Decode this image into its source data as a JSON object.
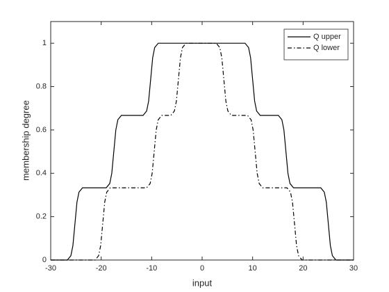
{
  "chart_data": {
    "type": "line",
    "xlabel": "input",
    "ylabel": "membership degree",
    "xlim": [
      -30,
      30
    ],
    "ylim": [
      0,
      1.1
    ],
    "xticks": [
      -30,
      -20,
      -10,
      0,
      10,
      20,
      30
    ],
    "yticks": [
      0,
      0.2,
      0.4,
      0.6,
      0.8,
      1
    ],
    "legend": "upper right",
    "series": [
      {
        "name": "Q upper",
        "color": "#000000",
        "style": "solid",
        "x": [
          -30,
          -26.7,
          -26,
          -25.6,
          -25.2,
          -24.8,
          -24.4,
          -23.7,
          -19,
          -18.3,
          -17.9,
          -17.5,
          -17.1,
          -16.7,
          -16,
          -11.7,
          -11,
          -10.6,
          -10.2,
          -9.8,
          -9.4,
          -8.7,
          8.5,
          9.2,
          9.6,
          10,
          10.4,
          10.8,
          11.5,
          15.1,
          15.8,
          16.2,
          16.6,
          17,
          17.4,
          18.1,
          23.5,
          24.2,
          24.6,
          25,
          25.4,
          25.8,
          26.5,
          30
        ],
        "values": [
          0,
          0,
          0.02,
          0.067,
          0.167,
          0.267,
          0.313,
          0.333,
          0.333,
          0.353,
          0.4,
          0.5,
          0.6,
          0.647,
          0.667,
          0.667,
          0.687,
          0.733,
          0.833,
          0.933,
          0.98,
          1,
          1,
          0.98,
          0.933,
          0.833,
          0.733,
          0.687,
          0.667,
          0.667,
          0.647,
          0.6,
          0.5,
          0.4,
          0.353,
          0.333,
          0.333,
          0.313,
          0.267,
          0.167,
          0.067,
          0.02,
          0,
          0
        ]
      },
      {
        "name": "Q lower",
        "color": "#000000",
        "style": "dashdot",
        "x": [
          -30,
          -21.2,
          -20.5,
          -20.1,
          -19.7,
          -19.3,
          -18.9,
          -18.2,
          -11,
          -10.3,
          -9.9,
          -9.5,
          -9.1,
          -8.7,
          -8,
          -6.2,
          -5.5,
          -5.1,
          -4.7,
          -4.3,
          -3.9,
          -3.2,
          2.8,
          3.5,
          3.9,
          4.3,
          4.7,
          5.1,
          5.8,
          9,
          9.7,
          10.1,
          10.5,
          10.9,
          11.3,
          12,
          16.8,
          17.5,
          17.9,
          18.3,
          18.7,
          19.1,
          19.8,
          30
        ],
        "values": [
          0,
          0,
          0.02,
          0.067,
          0.167,
          0.267,
          0.313,
          0.333,
          0.333,
          0.353,
          0.4,
          0.5,
          0.6,
          0.647,
          0.667,
          0.667,
          0.687,
          0.733,
          0.833,
          0.933,
          0.98,
          1,
          1,
          0.98,
          0.933,
          0.833,
          0.733,
          0.687,
          0.667,
          0.667,
          0.647,
          0.6,
          0.5,
          0.4,
          0.353,
          0.333,
          0.333,
          0.313,
          0.267,
          0.167,
          0.067,
          0.02,
          0,
          0
        ]
      }
    ]
  }
}
